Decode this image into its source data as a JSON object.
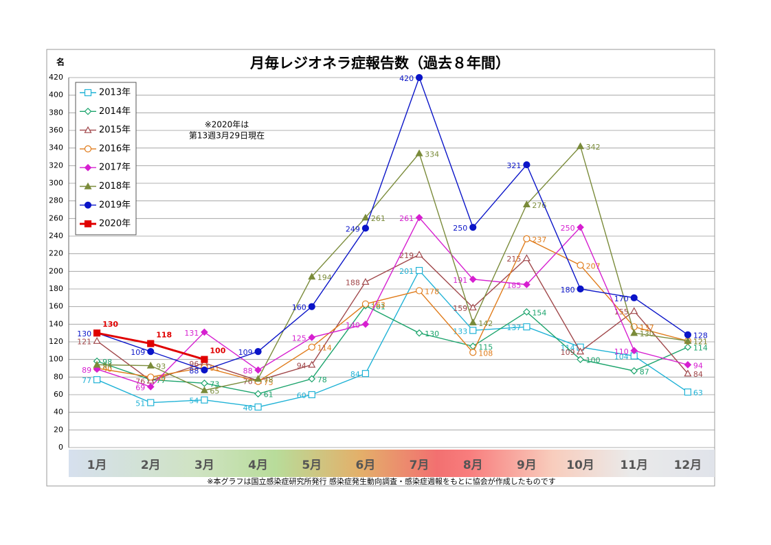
{
  "chart_data": {
    "type": "line",
    "title": "月毎レジオネラ症報告数（過去８年間）",
    "y_label": "名",
    "annotation": [
      "※2020年は",
      "第13週3月29日現在"
    ],
    "source": "※本グラフは国立感染症研究所発行 感染症発生動向調査・感染症週報をもとに協会が作成したものです",
    "categories": [
      "1月",
      "2月",
      "3月",
      "4月",
      "5月",
      "6月",
      "7月",
      "8月",
      "9月",
      "10月",
      "11月",
      "12月"
    ],
    "ylim": [
      0,
      420
    ],
    "yticks": [
      0,
      20,
      40,
      60,
      80,
      100,
      120,
      140,
      160,
      180,
      200,
      220,
      240,
      260,
      280,
      300,
      320,
      340,
      360,
      380,
      400,
      420
    ],
    "grid": true,
    "legend": "upper-left",
    "series": [
      {
        "name": "2013年",
        "color": "#1fb2d6",
        "marker": "square-open",
        "values": [
          77,
          51,
          54,
          46,
          60,
          84,
          201,
          133,
          137,
          114,
          104,
          63
        ]
      },
      {
        "name": "2014年",
        "color": "#1aa36b",
        "marker": "diamond-open",
        "values": [
          98,
          77,
          73,
          61,
          78,
          161,
          130,
          115,
          154,
          100,
          87,
          114
        ]
      },
      {
        "name": "2015年",
        "color": "#a0474a",
        "marker": "triangle-open",
        "values": [
          121,
          76,
          96,
          76,
          94,
          188,
          219,
          159,
          215,
          109,
          155,
          84
        ]
      },
      {
        "name": "2016年",
        "color": "#e07b1a",
        "marker": "circle-open",
        "values": [
          90,
          80,
          91,
          75,
          114,
          163,
          178,
          108,
          237,
          207,
          137,
          121
        ]
      },
      {
        "name": "2017年",
        "color": "#d61fd0",
        "marker": "diamond",
        "values": [
          89,
          69,
          131,
          88,
          125,
          140,
          261,
          191,
          185,
          250,
          110,
          94
        ]
      },
      {
        "name": "2018年",
        "color": "#7a8b3a",
        "marker": "triangle",
        "values": [
          94,
          93,
          65,
          78,
          194,
          261,
          334,
          142,
          276,
          342,
          130,
          121
        ]
      },
      {
        "name": "2019年",
        "color": "#0a14c8",
        "marker": "circle",
        "values": [
          130,
          109,
          88,
          109,
          160,
          249,
          420,
          250,
          321,
          180,
          170,
          128
        ]
      },
      {
        "name": "2020年",
        "color": "#e00000",
        "marker": "square",
        "values": [
          130,
          118,
          100,
          null,
          null,
          null,
          null,
          null,
          null,
          null,
          null,
          null
        ]
      }
    ]
  }
}
